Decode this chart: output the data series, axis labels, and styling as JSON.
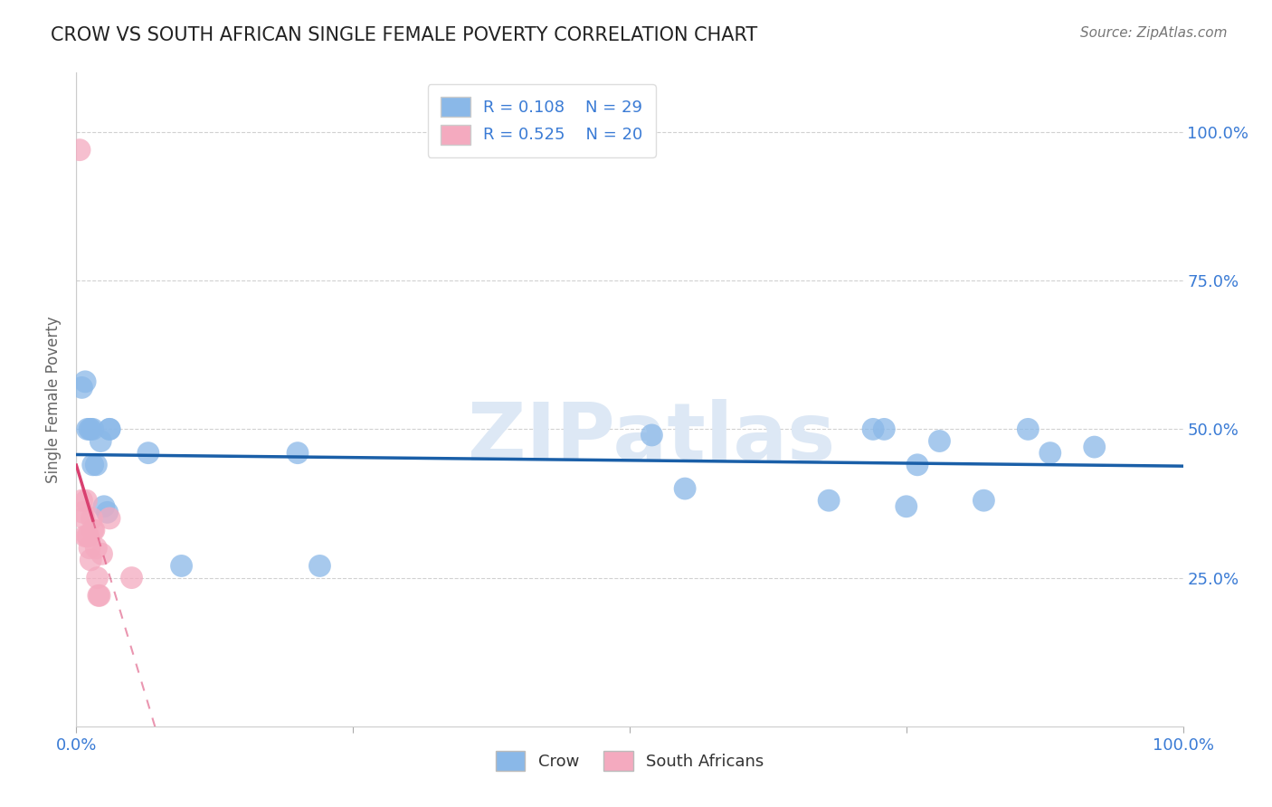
{
  "title": "CROW VS SOUTH AFRICAN SINGLE FEMALE POVERTY CORRELATION CHART",
  "source": "Source: ZipAtlas.com",
  "ylabel": "Single Female Poverty",
  "watermark": "ZIPatlas",
  "crow_R": 0.108,
  "crow_N": 29,
  "sa_R": 0.525,
  "sa_N": 20,
  "crow_color": "#8ab8e8",
  "sa_color": "#f4aabf",
  "crow_line_color": "#1a5fa8",
  "sa_line_color": "#d94070",
  "crow_x": [
    0.005,
    0.008,
    0.01,
    0.012,
    0.013,
    0.015,
    0.015,
    0.018,
    0.022,
    0.025,
    0.028,
    0.03,
    0.03,
    0.065,
    0.095,
    0.2,
    0.22,
    0.52,
    0.55,
    0.68,
    0.72,
    0.73,
    0.75,
    0.76,
    0.78,
    0.82,
    0.86,
    0.88,
    0.92
  ],
  "crow_y": [
    0.57,
    0.58,
    0.5,
    0.5,
    0.5,
    0.5,
    0.44,
    0.44,
    0.48,
    0.37,
    0.36,
    0.5,
    0.5,
    0.46,
    0.27,
    0.46,
    0.27,
    0.49,
    0.4,
    0.38,
    0.5,
    0.5,
    0.37,
    0.44,
    0.48,
    0.38,
    0.5,
    0.46,
    0.47
  ],
  "sa_x": [
    0.003,
    0.005,
    0.006,
    0.007,
    0.008,
    0.009,
    0.01,
    0.011,
    0.012,
    0.013,
    0.014,
    0.015,
    0.016,
    0.018,
    0.019,
    0.02,
    0.021,
    0.023,
    0.03,
    0.05
  ],
  "sa_y": [
    0.97,
    0.38,
    0.36,
    0.35,
    0.32,
    0.38,
    0.32,
    0.32,
    0.3,
    0.28,
    0.35,
    0.33,
    0.33,
    0.3,
    0.25,
    0.22,
    0.22,
    0.29,
    0.35,
    0.25
  ],
  "xlim": [
    0.0,
    1.0
  ],
  "ylim": [
    0.0,
    1.1
  ],
  "background_color": "#ffffff",
  "grid_color": "#cccccc",
  "title_color": "#222222",
  "label_color": "#3a7bd5",
  "axis_label_color": "#666666"
}
